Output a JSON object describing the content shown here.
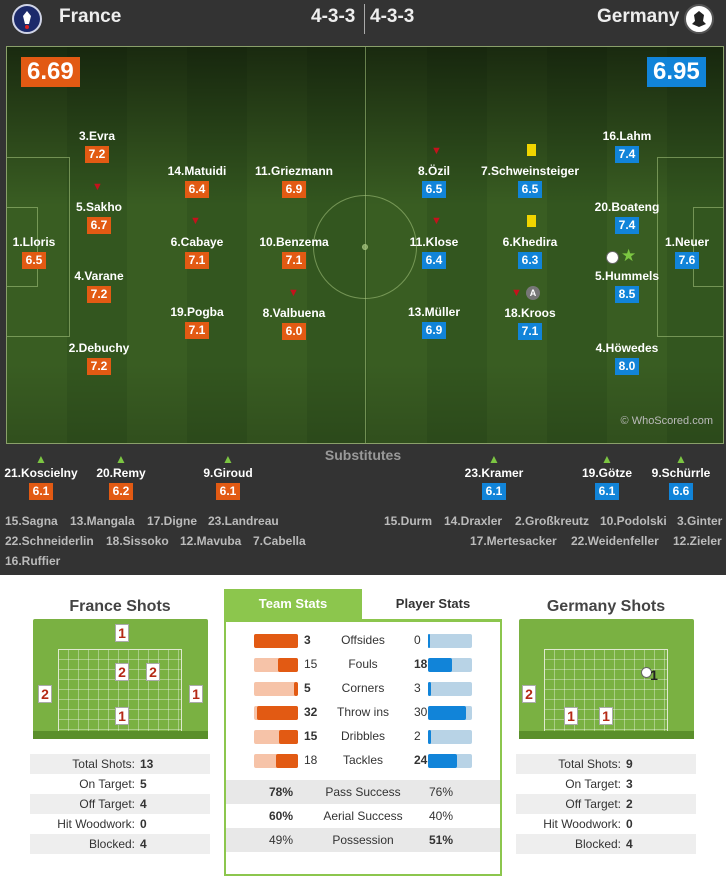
{
  "header": {
    "home_team": "France",
    "away_team": "Germany",
    "home_formation": "4-3-3",
    "away_formation": "4-3-3",
    "home_color": "#e25a13",
    "away_color": "#1184d9"
  },
  "ratings": {
    "home": "6.69",
    "away": "6.95"
  },
  "home_players": [
    {
      "name": "3.Evra",
      "rating": "7.2"
    },
    {
      "name": "5.Sakho",
      "rating": "6.7"
    },
    {
      "name": "1.Lloris",
      "rating": "6.5"
    },
    {
      "name": "4.Varane",
      "rating": "7.2"
    },
    {
      "name": "2.Debuchy",
      "rating": "7.2"
    },
    {
      "name": "14.Matuidi",
      "rating": "6.4"
    },
    {
      "name": "6.Cabaye",
      "rating": "7.1"
    },
    {
      "name": "19.Pogba",
      "rating": "7.1"
    },
    {
      "name": "11.Griezmann",
      "rating": "6.9"
    },
    {
      "name": "10.Benzema",
      "rating": "7.1"
    },
    {
      "name": "8.Valbuena",
      "rating": "6.0"
    }
  ],
  "away_players": [
    {
      "name": "8.Özil",
      "rating": "6.5"
    },
    {
      "name": "11.Klose",
      "rating": "6.4"
    },
    {
      "name": "13.Müller",
      "rating": "6.9"
    },
    {
      "name": "7.Schweinsteiger",
      "rating": "6.5"
    },
    {
      "name": "6.Khedira",
      "rating": "6.3"
    },
    {
      "name": "18.Kroos",
      "rating": "7.1"
    },
    {
      "name": "16.Lahm",
      "rating": "7.4"
    },
    {
      "name": "20.Boateng",
      "rating": "7.4"
    },
    {
      "name": "5.Hummels",
      "rating": "8.5"
    },
    {
      "name": "4.Höwedes",
      "rating": "8.0"
    },
    {
      "name": "1.Neuer",
      "rating": "7.6"
    }
  ],
  "captain_badge": "A",
  "watermark": "© WhoScored.com",
  "substitutes_title": "Substitutes",
  "home_subs": [
    {
      "name": "21.Koscielny",
      "rating": "6.1"
    },
    {
      "name": "20.Remy",
      "rating": "6.2"
    },
    {
      "name": "9.Giroud",
      "rating": "6.1"
    }
  ],
  "away_subs": [
    {
      "name": "23.Kramer",
      "rating": "6.1"
    },
    {
      "name": "19.Götze",
      "rating": "6.1"
    },
    {
      "name": "9.Schürrle",
      "rating": "6.6"
    }
  ],
  "home_unused": [
    "15.Sagna",
    "13.Mangala",
    "17.Digne",
    "23.Landreau",
    "22.Schneiderlin",
    "18.Sissoko",
    "12.Mavuba",
    "7.Cabella",
    "16.Ruffier"
  ],
  "away_unused": [
    "15.Durm",
    "14.Draxler",
    "2.Großkreutz",
    "10.Podolski",
    "3.Ginter",
    "17.Mertesacker",
    "22.Weidenfeller",
    "12.Zieler"
  ],
  "home_shots": {
    "title": "France Shots",
    "zones": [
      "1",
      "2",
      "2",
      "2",
      "1",
      "1"
    ],
    "stats": [
      {
        "label": "Total Shots:",
        "value": "13"
      },
      {
        "label": "On Target:",
        "value": "5"
      },
      {
        "label": "Off Target:",
        "value": "4"
      },
      {
        "label": "Hit Woodwork:",
        "value": "0"
      },
      {
        "label": "Blocked:",
        "value": "4"
      }
    ]
  },
  "away_shots": {
    "title": "Germany Shots",
    "zones": [
      "1",
      "2",
      "1",
      "1"
    ],
    "stats": [
      {
        "label": "Total Shots:",
        "value": "9"
      },
      {
        "label": "On Target:",
        "value": "3"
      },
      {
        "label": "Off Target:",
        "value": "2"
      },
      {
        "label": "Hit Woodwork:",
        "value": "0"
      },
      {
        "label": "Blocked:",
        "value": "4"
      }
    ]
  },
  "tabs": {
    "team": "Team Stats",
    "player": "Player Stats"
  },
  "team_stats": [
    {
      "label": "Offsides",
      "home": "3",
      "away": "0",
      "home_frac": 1.0,
      "away_frac": 0.0
    },
    {
      "label": "Fouls",
      "home": "15",
      "away": "18",
      "home_frac": 0.45,
      "away_frac": 0.55
    },
    {
      "label": "Corners",
      "home": "5",
      "away": "3",
      "home_frac": 0.1,
      "away_frac": 0.06
    },
    {
      "label": "Throw ins",
      "home": "32",
      "away": "30",
      "home_frac": 0.93,
      "away_frac": 0.87
    },
    {
      "label": "Dribbles",
      "home": "15",
      "away": "2",
      "home_frac": 0.43,
      "away_frac": 0.06
    },
    {
      "label": "Tackles",
      "home": "18",
      "away": "24",
      "home_frac": 0.5,
      "away_frac": 0.67
    }
  ],
  "pct_stats": [
    {
      "label": "Pass Success",
      "home": "78%",
      "away": "76%"
    },
    {
      "label": "Aerial Success",
      "home": "60%",
      "away": "40%"
    },
    {
      "label": "Possession",
      "home": "49%",
      "away": "51%"
    }
  ]
}
